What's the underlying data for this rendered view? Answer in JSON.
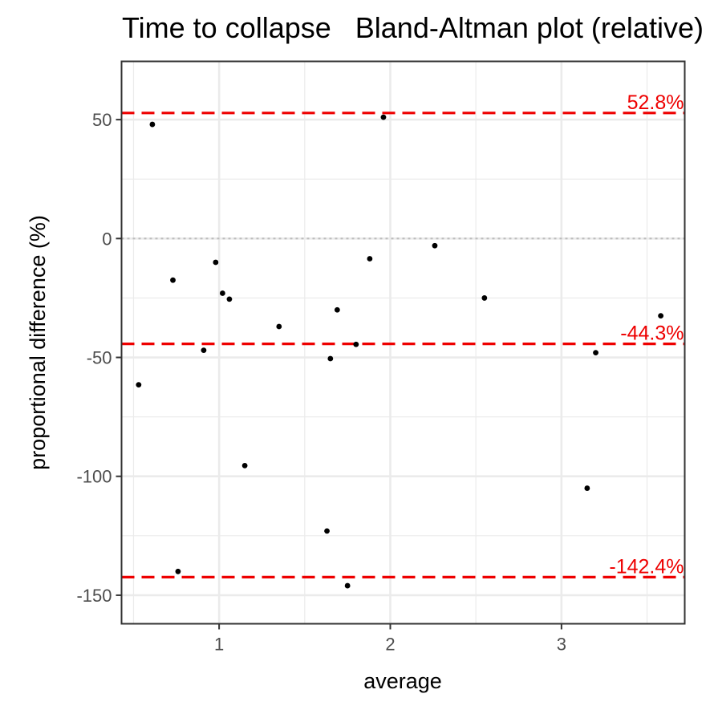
{
  "chart_data": {
    "type": "scatter",
    "title": "Time to collapse   Bland-Altman plot (relative)",
    "xlabel": "average",
    "ylabel": "proportional difference (%)",
    "xlim": [
      0.43,
      3.72
    ],
    "ylim": [
      -162,
      74.5
    ],
    "x_ticks": [
      1,
      2,
      3
    ],
    "x_tick_labels": [
      "1",
      "2",
      "3"
    ],
    "y_ticks": [
      50,
      0,
      -50,
      -100,
      -150
    ],
    "y_tick_labels": [
      "50",
      "0",
      "-50",
      "-100",
      "-150"
    ],
    "grid": true,
    "zero_line": 0,
    "limits_of_agreement": [
      {
        "value": 52.8,
        "label": "52.8%"
      },
      {
        "value": -44.3,
        "label": "-44.3%"
      },
      {
        "value": -142.4,
        "label": "-142.4%"
      }
    ],
    "limit_color": "#ee0000",
    "point_color": "#000000",
    "points": [
      {
        "x": 0.53,
        "y": -61.5
      },
      {
        "x": 0.61,
        "y": 48
      },
      {
        "x": 0.73,
        "y": -17.5
      },
      {
        "x": 0.76,
        "y": -140
      },
      {
        "x": 0.91,
        "y": -47
      },
      {
        "x": 0.98,
        "y": -10
      },
      {
        "x": 1.02,
        "y": -23
      },
      {
        "x": 1.06,
        "y": -25.5
      },
      {
        "x": 1.15,
        "y": -95.5
      },
      {
        "x": 1.35,
        "y": -37
      },
      {
        "x": 1.63,
        "y": -123
      },
      {
        "x": 1.65,
        "y": -50.5
      },
      {
        "x": 1.69,
        "y": -30
      },
      {
        "x": 1.75,
        "y": -146
      },
      {
        "x": 1.8,
        "y": -44.5
      },
      {
        "x": 1.88,
        "y": -8.5
      },
      {
        "x": 1.96,
        "y": 51
      },
      {
        "x": 2.26,
        "y": -3
      },
      {
        "x": 2.55,
        "y": -25
      },
      {
        "x": 3.15,
        "y": -105
      },
      {
        "x": 3.2,
        "y": -48
      },
      {
        "x": 3.58,
        "y": -32.5
      }
    ]
  }
}
